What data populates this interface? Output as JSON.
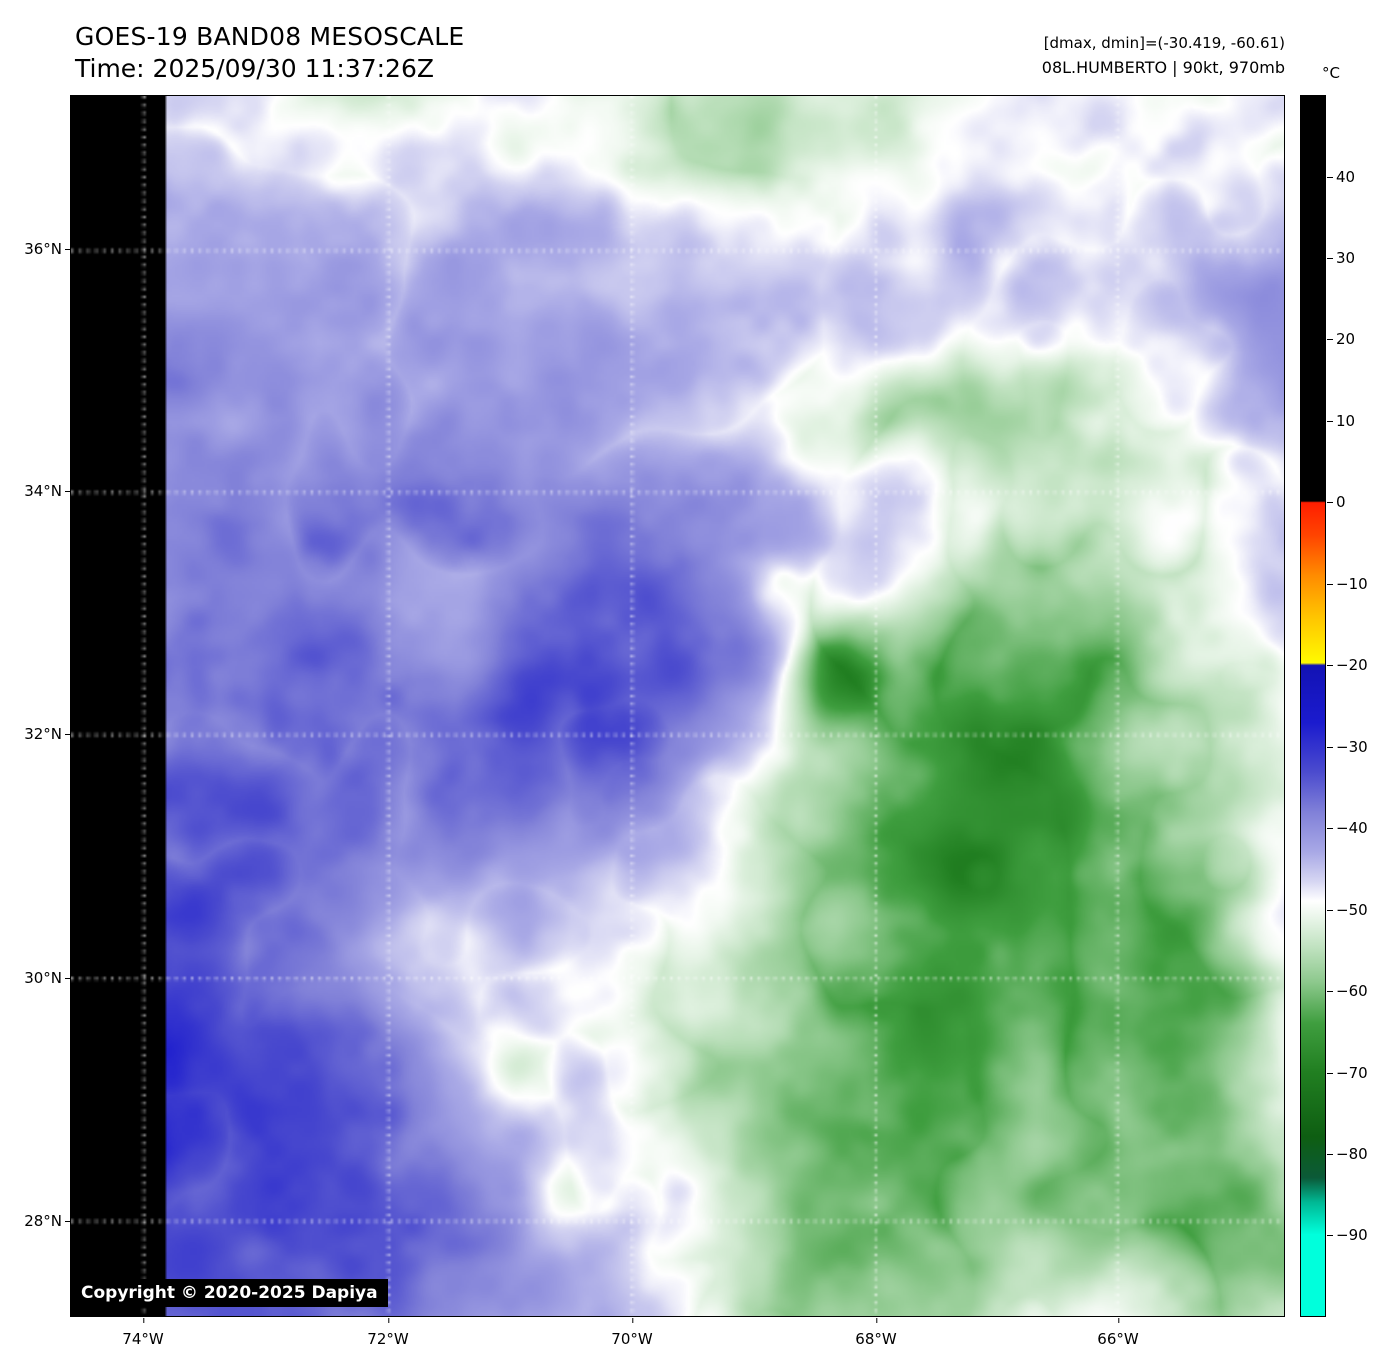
{
  "header": {
    "title": "GOES-19 BAND08 MESOSCALE",
    "time_line": "Time: 2025/09/30 11:37:26Z",
    "range_line": "[dmax, dmin]=(-30.419, -60.61)",
    "storm_line": "08L.HUMBERTO | 90kt, 970mb"
  },
  "map": {
    "lat_labels": [
      "36°N",
      "34°N",
      "32°N",
      "30°N",
      "28°N"
    ],
    "lon_labels": [
      "74°W",
      "72°W",
      "70°W",
      "68°W",
      "66°W"
    ],
    "copyright": "Copyright © 2020-2025 Dapiya",
    "grid_color": "#ffffff",
    "nodata_color": "#000000"
  },
  "colorbar": {
    "unit": "°C",
    "tick_labels": [
      "40",
      "30",
      "20",
      "10",
      "0",
      "−10",
      "−20",
      "−30",
      "−40",
      "−50",
      "−60",
      "−70",
      "−80",
      "−90"
    ],
    "tick_values": [
      40,
      30,
      20,
      10,
      0,
      -10,
      -20,
      -30,
      -40,
      -50,
      -60,
      -70,
      -80,
      -90
    ],
    "range": [
      50,
      -100
    ],
    "colormap_stops": [
      [
        50,
        "#000000"
      ],
      [
        0.2,
        "#000000"
      ],
      [
        0,
        "#ff1e00"
      ],
      [
        -4,
        "#ff4400"
      ],
      [
        -9,
        "#ff8c00"
      ],
      [
        -14,
        "#ffc400"
      ],
      [
        -19.7,
        "#fffa00"
      ],
      [
        -20,
        "#1212b4"
      ],
      [
        -27,
        "#1b1bce"
      ],
      [
        -33,
        "#4a4ace"
      ],
      [
        -38,
        "#8080d8"
      ],
      [
        -43,
        "#a9a9e6"
      ],
      [
        -46.5,
        "#d5d5f2"
      ],
      [
        -49,
        "#ffffff"
      ],
      [
        -51.5,
        "#e4f3e4"
      ],
      [
        -55,
        "#bce0bc"
      ],
      [
        -59,
        "#8cc88c"
      ],
      [
        -64,
        "#3f9e3f"
      ],
      [
        -70,
        "#217f21"
      ],
      [
        -78,
        "#0e5e12"
      ],
      [
        -83,
        "#0b5a38"
      ],
      [
        -86,
        "#00b894"
      ],
      [
        -90,
        "#00ffdc"
      ],
      [
        -100,
        "#00ffdc"
      ]
    ]
  },
  "colors": {
    "page_bg": "#ffffff",
    "text": "#000000",
    "copyright_bg": "#000000",
    "copyright_fg": "#ffffff"
  }
}
